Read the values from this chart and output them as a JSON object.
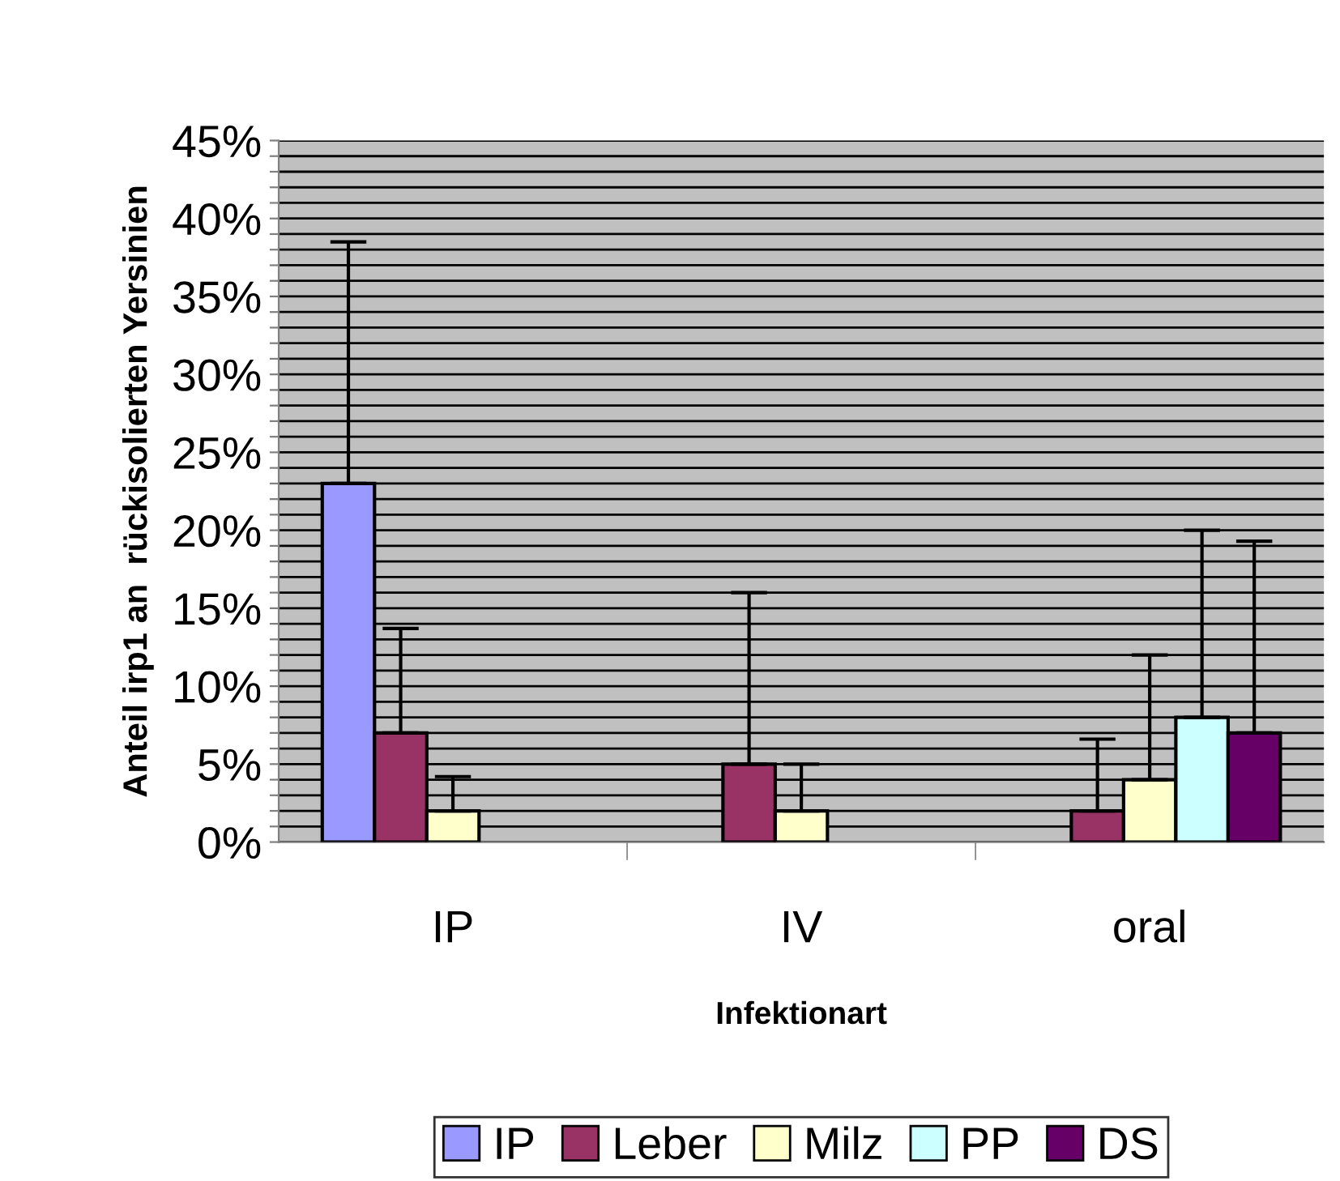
{
  "chart_data": {
    "type": "bar",
    "xlabel": "Infektionart",
    "ylabel": "Anteil irp1 an  rückisolierten Yersinien",
    "categories": [
      "IP",
      "IV",
      "oral"
    ],
    "series": [
      {
        "name": "IP",
        "color": "#9999ff",
        "values": [
          23,
          null,
          null
        ],
        "errors": [
          [
            23,
            38.5
          ],
          null,
          null
        ]
      },
      {
        "name": "Leber",
        "color": "#993366",
        "values": [
          7,
          5,
          2
        ],
        "errors": [
          [
            7,
            13.7
          ],
          [
            5,
            16
          ],
          [
            2,
            6.6
          ]
        ]
      },
      {
        "name": "Milz",
        "color": "#ffffcc",
        "values": [
          2,
          2,
          4
        ],
        "errors": [
          [
            2,
            4.2
          ],
          [
            2,
            5
          ],
          [
            4,
            12
          ]
        ]
      },
      {
        "name": "PP",
        "color": "#ccffff",
        "values": [
          null,
          null,
          8
        ],
        "errors": [
          null,
          null,
          [
            8,
            20
          ]
        ]
      },
      {
        "name": "DS",
        "color": "#660066",
        "values": [
          null,
          null,
          7
        ],
        "errors": [
          null,
          null,
          [
            7,
            19.3
          ]
        ]
      }
    ],
    "ylim": [
      0,
      45
    ],
    "yticks": [
      {
        "value": 0,
        "label": "0%"
      },
      {
        "value": 1,
        "label": null
      },
      {
        "value": 2,
        "label": null
      },
      {
        "value": 3,
        "label": null
      },
      {
        "value": 4,
        "label": null
      },
      {
        "value": 5,
        "label": "5%"
      },
      {
        "value": 6,
        "label": null
      },
      {
        "value": 7,
        "label": null
      },
      {
        "value": 8,
        "label": null
      },
      {
        "value": 9,
        "label": null
      },
      {
        "value": 10,
        "label": "10%"
      },
      {
        "value": 11,
        "label": null
      },
      {
        "value": 12,
        "label": null
      },
      {
        "value": 13,
        "label": null
      },
      {
        "value": 14,
        "label": null
      },
      {
        "value": 15,
        "label": "15%"
      },
      {
        "value": 16,
        "label": null
      },
      {
        "value": 17,
        "label": null
      },
      {
        "value": 18,
        "label": null
      },
      {
        "value": 19,
        "label": null
      },
      {
        "value": 20,
        "label": "20%"
      },
      {
        "value": 21,
        "label": null
      },
      {
        "value": 22,
        "label": null
      },
      {
        "value": 23,
        "label": null
      },
      {
        "value": 24,
        "label": null
      },
      {
        "value": 25,
        "label": "25%"
      },
      {
        "value": 26,
        "label": null
      },
      {
        "value": 27,
        "label": null
      },
      {
        "value": 28,
        "label": null
      },
      {
        "value": 29,
        "label": null
      },
      {
        "value": 30,
        "label": "30%"
      },
      {
        "value": 31,
        "label": null
      },
      {
        "value": 32,
        "label": null
      },
      {
        "value": 33,
        "label": null
      },
      {
        "value": 34,
        "label": null
      },
      {
        "value": 35,
        "label": "35%"
      },
      {
        "value": 36,
        "label": null
      },
      {
        "value": 37,
        "label": null
      },
      {
        "value": 38,
        "label": null
      },
      {
        "value": 39,
        "label": null
      },
      {
        "value": 40,
        "label": "40%"
      },
      {
        "value": 41,
        "label": null
      },
      {
        "value": 42,
        "label": null
      },
      {
        "value": 43,
        "label": null
      },
      {
        "value": 44,
        "label": null
      },
      {
        "value": 45,
        "label": "45%"
      }
    ],
    "grid": "y",
    "legend": "bottom"
  }
}
